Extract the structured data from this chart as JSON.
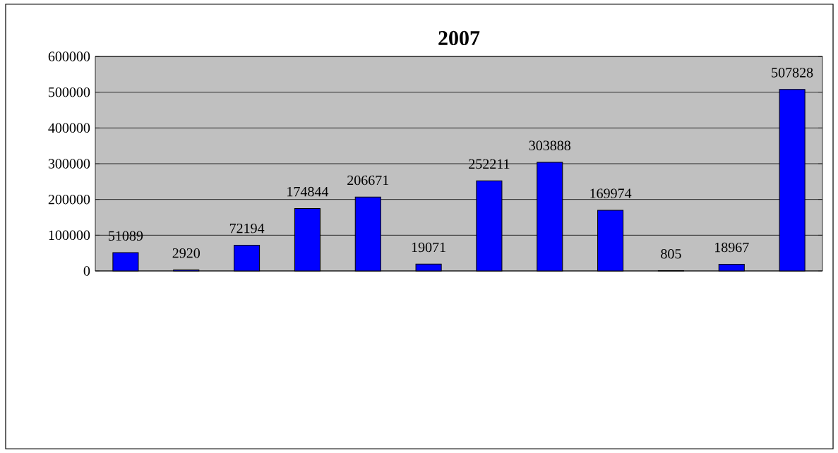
{
  "chart_data": {
    "type": "bar",
    "title": "2007",
    "categories": [
      null,
      null,
      null,
      null,
      null,
      null,
      null,
      null,
      null,
      null,
      null,
      null
    ],
    "values": [
      51089,
      2920,
      72194,
      174844,
      206671,
      19071,
      252211,
      303888,
      169974,
      805,
      18967,
      507828
    ],
    "color": "#0000ff",
    "ylim": [
      0,
      600000
    ],
    "yticks": [
      0,
      100000,
      200000,
      300000,
      400000,
      500000,
      600000
    ],
    "grid": "y",
    "data_labels": true
  }
}
